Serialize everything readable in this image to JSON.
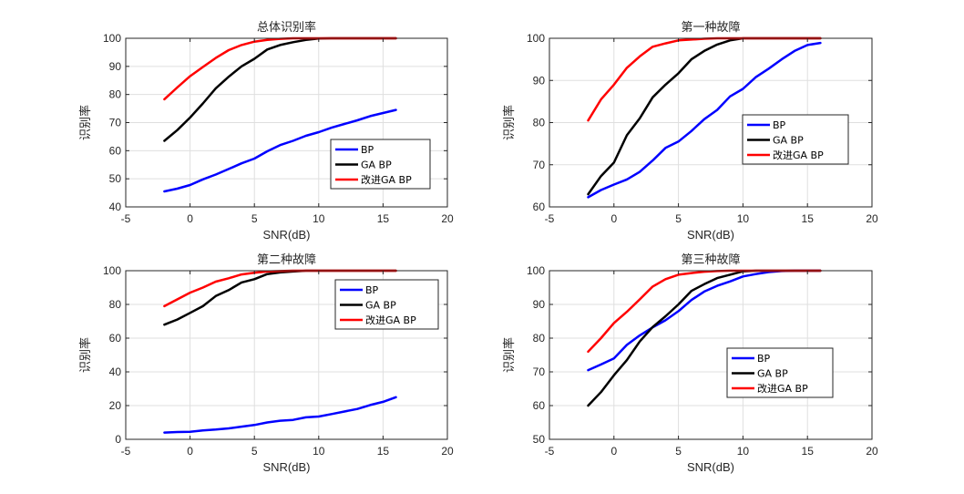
{
  "chart_data": [
    {
      "type": "line",
      "title": "总体识别率",
      "xlabel": "SNR(dB)",
      "ylabel": "识别率",
      "xlim": [
        -5,
        20
      ],
      "ylim": [
        40,
        100
      ],
      "xticks": [
        -5,
        0,
        5,
        10,
        15,
        20
      ],
      "yticks": [
        40,
        50,
        60,
        70,
        80,
        90,
        100
      ],
      "grid": true,
      "legend_position": "lower-right",
      "x": [
        -2,
        -1,
        0,
        1,
        2,
        3,
        4,
        5,
        6,
        7,
        8,
        9,
        10,
        11,
        12,
        13,
        14,
        15,
        16
      ],
      "series": [
        {
          "name": "BP",
          "color": "#0000ff",
          "values": [
            45.5,
            46.5,
            47.8,
            49.8,
            51.5,
            53.5,
            55.5,
            57.2,
            59.8,
            62,
            63.5,
            65.3,
            66.6,
            68.2,
            69.5,
            70.8,
            72.3,
            73.4,
            74.5
          ]
        },
        {
          "name": "GA BP",
          "color": "#000000",
          "values": [
            63.5,
            67.3,
            71.8,
            76.8,
            82.2,
            86.3,
            90,
            92.7,
            96,
            97.6,
            98.6,
            99.4,
            99.9,
            100,
            100,
            100,
            100,
            100,
            100
          ]
        },
        {
          "name": "改进GA BP",
          "color": "#ff0000",
          "values": [
            78.3,
            82.5,
            86.5,
            89.8,
            93,
            95.8,
            97.6,
            98.8,
            99.4,
            99.8,
            100,
            100,
            100,
            100,
            100,
            100,
            100,
            100,
            100
          ]
        }
      ]
    },
    {
      "type": "line",
      "title": "第一种故障",
      "xlabel": "SNR(dB)",
      "ylabel": "识别率",
      "xlim": [
        -5,
        20
      ],
      "ylim": [
        60,
        100
      ],
      "xticks": [
        -5,
        0,
        5,
        10,
        15,
        20
      ],
      "yticks": [
        60,
        70,
        80,
        90,
        100
      ],
      "grid": true,
      "legend_position": "middle-right",
      "x": [
        -2,
        -1,
        0,
        1,
        2,
        3,
        4,
        5,
        6,
        7,
        8,
        9,
        10,
        11,
        12,
        13,
        14,
        15,
        16
      ],
      "series": [
        {
          "name": "BP",
          "color": "#0000ff",
          "values": [
            62.3,
            64,
            65.3,
            66.5,
            68.3,
            71,
            74,
            75.5,
            78,
            80.8,
            83,
            86.2,
            88,
            90.8,
            92.8,
            95,
            97,
            98.4,
            98.9
          ]
        },
        {
          "name": "GA BP",
          "color": "#000000",
          "values": [
            63,
            67.3,
            70.5,
            77,
            81,
            86,
            89,
            91.7,
            95,
            97,
            98.5,
            99.5,
            100,
            100,
            100,
            100,
            100,
            100,
            100
          ]
        },
        {
          "name": "改进GA BP",
          "color": "#ff0000",
          "values": [
            80.5,
            85.5,
            89,
            93,
            95.7,
            98,
            98.8,
            99.5,
            99.7,
            99.9,
            100,
            100,
            100,
            100,
            100,
            100,
            100,
            100,
            100
          ]
        }
      ]
    },
    {
      "type": "line",
      "title": "第二种故障",
      "xlabel": "SNR(dB)",
      "ylabel": "识别率",
      "xlim": [
        -5,
        20
      ],
      "ylim": [
        0,
        100
      ],
      "xticks": [
        -5,
        0,
        5,
        10,
        15,
        20
      ],
      "yticks": [
        0,
        20,
        40,
        60,
        80,
        100
      ],
      "grid": true,
      "legend_position": "top-right",
      "x": [
        -2,
        -1,
        0,
        1,
        2,
        3,
        4,
        5,
        6,
        7,
        8,
        9,
        10,
        11,
        12,
        13,
        14,
        15,
        16
      ],
      "series": [
        {
          "name": "BP",
          "color": "#0000ff",
          "values": [
            4,
            4.3,
            4.5,
            5.3,
            5.8,
            6.5,
            7.5,
            8.5,
            10,
            11,
            11.5,
            13,
            13.5,
            15,
            16.5,
            18,
            20.3,
            22.2,
            25
          ]
        },
        {
          "name": "GA BP",
          "color": "#000000",
          "values": [
            68,
            71,
            75,
            79,
            85,
            88.5,
            93,
            95,
            98,
            99,
            99.5,
            100,
            100,
            100,
            100,
            100,
            100,
            100,
            100
          ]
        },
        {
          "name": "改进GA BP",
          "color": "#ff0000",
          "values": [
            79,
            83,
            87,
            90,
            93.5,
            95.5,
            97.8,
            98.8,
            99.5,
            99.8,
            100,
            100,
            100,
            100,
            100,
            100,
            100,
            100,
            100
          ]
        }
      ]
    },
    {
      "type": "line",
      "title": "第三种故障",
      "xlabel": "SNR(dB)",
      "ylabel": "识别率",
      "xlim": [
        -5,
        20
      ],
      "ylim": [
        50,
        100
      ],
      "xticks": [
        -5,
        0,
        5,
        10,
        15,
        20
      ],
      "yticks": [
        50,
        60,
        70,
        80,
        90,
        100
      ],
      "grid": true,
      "legend_position": "lower-center",
      "x": [
        -2,
        -1,
        0,
        1,
        2,
        3,
        4,
        5,
        6,
        7,
        8,
        9,
        10,
        11,
        12,
        13,
        14,
        15,
        16
      ],
      "series": [
        {
          "name": "BP",
          "color": "#0000ff",
          "values": [
            70.5,
            72.2,
            74,
            78,
            80.8,
            83.2,
            85.3,
            88,
            91.3,
            93.8,
            95.5,
            96.8,
            98.3,
            99,
            99.6,
            99.9,
            100,
            100,
            100
          ]
        },
        {
          "name": "GA BP",
          "color": "#000000",
          "values": [
            60,
            64,
            69,
            73.5,
            79,
            83.3,
            86.5,
            90,
            94,
            96,
            97.8,
            98.8,
            99.8,
            100,
            100,
            100,
            100,
            100,
            100
          ]
        },
        {
          "name": "改进GA BP",
          "color": "#ff0000",
          "values": [
            76,
            80,
            84.5,
            87.8,
            91.5,
            95.3,
            97.5,
            98.8,
            99.3,
            99.7,
            99.9,
            100,
            100,
            100,
            100,
            100,
            100,
            100,
            100
          ]
        }
      ]
    }
  ]
}
